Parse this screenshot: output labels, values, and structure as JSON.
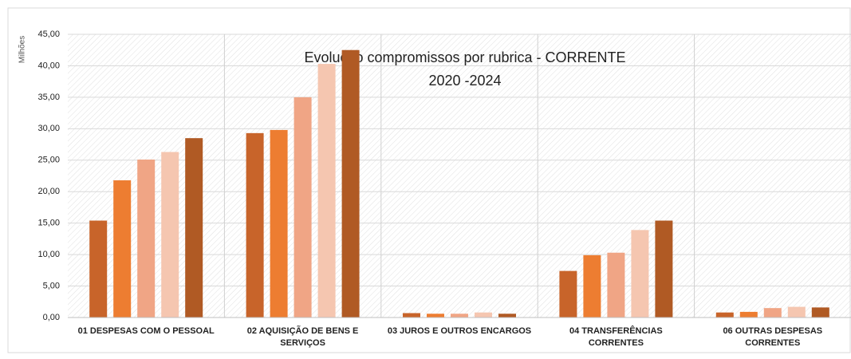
{
  "chart_data": {
    "type": "bar",
    "title": "Evolução compromissos por rubrica        - CORRENTE",
    "subtitle": "2020   -2024",
    "y_label": "Milhões",
    "categories": [
      "01  DESPESAS COM O PESSOAL",
      "02  AQUISIÇÃO DE BENS E SERVIÇOS",
      "03  JUROS E OUTROS ENCARGOS",
      "04  TRANSFERÊNCIAS CORRENTES",
      "06  OUTRAS DESPESAS CORRENTES"
    ],
    "series": [
      {
        "color": "#c8642a",
        "values": [
          15.4,
          29.3,
          0.7,
          7.4,
          0.8
        ]
      },
      {
        "color": "#ed7d31",
        "values": [
          21.8,
          29.8,
          0.6,
          9.9,
          0.9
        ]
      },
      {
        "color": "#f0a585",
        "values": [
          25.1,
          35.0,
          0.6,
          10.3,
          1.5
        ]
      },
      {
        "color": "#f5c6b0",
        "values": [
          26.3,
          40.3,
          0.8,
          13.9,
          1.7
        ]
      },
      {
        "color": "#b05a24",
        "values": [
          28.5,
          42.5,
          0.6,
          15.4,
          1.6
        ]
      }
    ],
    "ylim": [
      0,
      45
    ],
    "yticks": [
      {
        "value": 0,
        "label": "0,00"
      },
      {
        "value": 5,
        "label": "5,00"
      },
      {
        "value": 10,
        "label": "10,00"
      },
      {
        "value": 15,
        "label": "15,00"
      },
      {
        "value": 20,
        "label": "20,00"
      },
      {
        "value": 25,
        "label": "25,00"
      },
      {
        "value": 30,
        "label": "30,00"
      },
      {
        "value": 35,
        "label": "35,00"
      },
      {
        "value": 40,
        "label": "40,00"
      },
      {
        "value": 45,
        "label": "45,00"
      }
    ],
    "grid": true
  }
}
